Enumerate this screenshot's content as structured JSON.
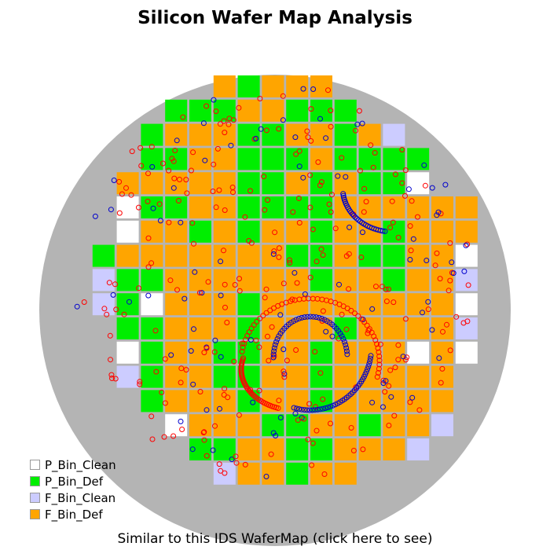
{
  "chart_data": {
    "type": "heatmap",
    "title": "Silicon Wafer Map Analysis",
    "rows": 17,
    "cols": 17,
    "bins": {
      "C": {
        "name": "P_Bin_Clean",
        "color": "#ffffff"
      },
      "D": {
        "name": "P_Bin_Def",
        "color": "#00ee00"
      },
      "F": {
        "name": "F_Bin_Clean",
        "color": "#ccccff"
      },
      "O": {
        "name": "F_Bin_Def",
        "color": "#ffa500"
      }
    },
    "legend_order": [
      "C",
      "D",
      "F",
      "O"
    ],
    "legend_position": "bottom-left",
    "die_bins": [
      "......ODOOO......",
      "....DDDOODDD.....",
      "...DOOODDOODOF...",
      "...DDOODDDODDDD..",
      "..OOOOODDODODDC..",
      "..CDDOODDDDOOOOOO",
      "..COODODOODOODOOO",
      ".DOOOOOOODDODDOOC",
      ".FDDOOOOOODOODOOF",
      ".FDCOOODOOOOOOOOC",
      "..DDOOODOOODOOOOF",
      "..CDOODDOODOOOCOC",
      "..FDOODDOODOOOOO.",
      "...DOOODOODOOOOO.",
      "....COOODDOODOOF.",
      ".....DDOODDOOOF..",
      "......FOODOO....."
    ],
    "defects_note": "Scatter of defect points drawn as small red/blue circles, including two circular arc clusters.",
    "footer": "Similar to this IDS WaferMap (click here to see)"
  }
}
